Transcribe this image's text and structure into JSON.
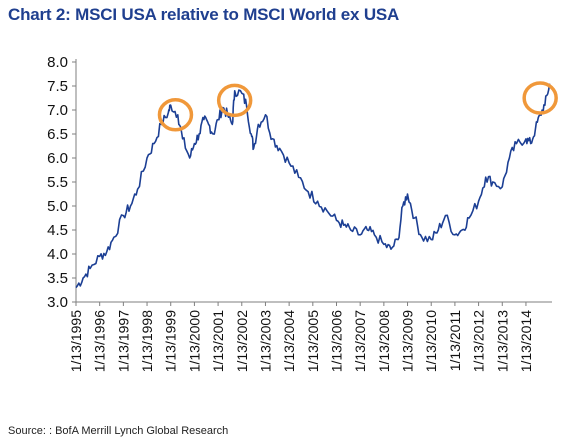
{
  "title": "Chart 2: MSCI USA relative to MSCI World ex USA",
  "source": "Source: : BofA Merrill Lynch Global Research",
  "colors": {
    "title": "#1f3f8f",
    "line": "#1c3f94",
    "highlight_circle": "#f0983a",
    "axis": "#7f7f7f"
  },
  "chart_data": {
    "type": "line",
    "title": "Chart 2: MSCI USA relative to MSCI World ex USA",
    "xlabel": "",
    "ylabel": "",
    "ylim": [
      3.0,
      8.0
    ],
    "yticks": [
      "3.0",
      "3.5",
      "4.0",
      "4.5",
      "5.0",
      "5.5",
      "6.0",
      "6.5",
      "7.0",
      "7.5",
      "8.0"
    ],
    "xticks": [
      "1/13/1995",
      "1/13/1996",
      "1/13/1997",
      "1/13/1998",
      "1/13/1999",
      "1/13/2000",
      "1/13/2001",
      "1/13/2002",
      "1/13/2003",
      "1/13/2004",
      "1/13/2005",
      "1/13/2006",
      "1/13/2007",
      "1/13/2008",
      "1/13/2009",
      "1/13/2010",
      "1/13/2011",
      "1/13/2012",
      "1/13/2013",
      "1/13/2014"
    ],
    "xlim": [
      1995.0,
      2015.1
    ],
    "grid": false,
    "legend": "none",
    "series": [
      {
        "x": [
          1995.0,
          1995.3,
          1995.6,
          1996.0,
          1996.3,
          1996.6,
          1997.0,
          1997.3,
          1997.6,
          1998.0,
          1998.3,
          1998.6,
          1998.9,
          1999.0,
          1999.3,
          1999.5,
          1999.8,
          2000.0,
          2000.2,
          2000.4,
          2000.6,
          2000.8,
          2001.0,
          2001.2,
          2001.4,
          2001.6,
          2001.7,
          2002.0,
          2002.2,
          2002.4,
          2002.5,
          2002.7,
          2003.0,
          2003.3,
          2003.6,
          2004.0,
          2004.4,
          2004.8,
          2005.2,
          2005.6,
          2006.0,
          2006.3,
          2006.6,
          2007.0,
          2007.3,
          2007.6,
          2008.0,
          2008.3,
          2008.6,
          2008.8,
          2009.0,
          2009.3,
          2009.6,
          2010.0,
          2010.3,
          2010.6,
          2011.0,
          2011.3,
          2011.6,
          2012.0,
          2012.3,
          2012.6,
          2013.0,
          2013.3,
          2013.6,
          2014.0,
          2014.2,
          2014.4,
          2014.6,
          2014.8,
          2015.0
        ],
        "values": [
          3.3,
          3.5,
          3.7,
          3.95,
          4.05,
          4.35,
          4.8,
          5.0,
          5.35,
          6.0,
          6.3,
          6.7,
          6.95,
          7.1,
          6.9,
          6.4,
          6.0,
          6.3,
          6.5,
          6.8,
          6.7,
          6.5,
          6.8,
          7.05,
          6.9,
          6.7,
          7.4,
          7.35,
          7.1,
          6.5,
          6.2,
          6.7,
          6.9,
          6.4,
          6.2,
          5.9,
          5.6,
          5.3,
          5.1,
          4.9,
          4.7,
          4.6,
          4.5,
          4.4,
          4.5,
          4.4,
          4.2,
          4.1,
          4.3,
          5.0,
          5.25,
          4.75,
          4.35,
          4.3,
          4.5,
          4.8,
          4.4,
          4.5,
          4.75,
          5.1,
          5.6,
          5.5,
          5.4,
          6.0,
          6.3,
          6.4,
          6.3,
          6.6,
          6.9,
          7.1,
          7.55
        ]
      }
    ],
    "annotations": [
      {
        "type": "circle",
        "x": 1999.2,
        "y": 6.9
      },
      {
        "type": "circle",
        "x": 2001.7,
        "y": 7.2
      },
      {
        "type": "circle",
        "x": 2014.6,
        "y": 7.25
      }
    ]
  }
}
